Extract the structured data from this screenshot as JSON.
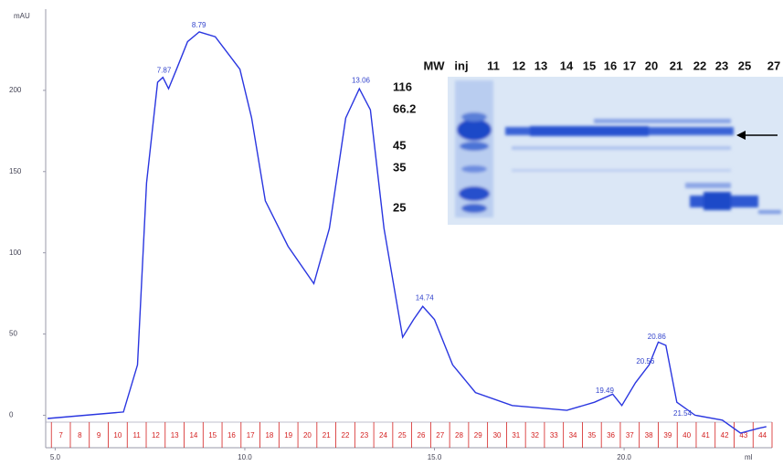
{
  "chart_data": {
    "type": "line",
    "y_label": "mAU",
    "x_label": "ml",
    "color": "#2a36e0",
    "x": [
      4.8,
      6.8,
      7.17,
      7.41,
      7.7,
      7.84,
      7.99,
      8.2,
      8.49,
      8.8,
      9.22,
      9.58,
      9.87,
      10.18,
      10.54,
      11.14,
      11.82,
      12.23,
      12.66,
      13.02,
      13.31,
      13.67,
      14.16,
      14.45,
      14.69,
      15.0,
      15.48,
      16.08,
      17.05,
      18.49,
      19.22,
      19.7,
      19.94,
      20.3,
      20.66,
      20.9,
      21.1,
      21.39,
      21.87,
      22.59,
      23.07,
      23.55,
      23.75
    ],
    "values": [
      -2,
      2,
      31,
      143,
      205,
      208,
      201,
      213,
      230,
      236,
      233,
      222,
      213,
      183,
      132,
      104,
      81,
      115,
      183,
      201,
      188,
      115,
      48,
      59,
      67,
      59,
      31,
      14,
      6,
      3,
      8,
      13,
      6,
      20,
      31,
      45,
      43,
      8,
      0,
      -3,
      -11,
      -8,
      -7
    ],
    "xlim": [
      4.75,
      23.9
    ],
    "ylim": [
      -20,
      250
    ],
    "xticks": [
      {
        "value": 5,
        "label": "5.0"
      },
      {
        "value": 10,
        "label": "10.0"
      },
      {
        "value": 15,
        "label": "15.0"
      },
      {
        "value": 20,
        "label": "20.0"
      }
    ],
    "yticks": [
      0,
      50,
      100,
      150,
      200
    ],
    "annotations": [
      {
        "x": 7.87,
        "y": 212,
        "label": "7.87"
      },
      {
        "x": 8.79,
        "y": 240,
        "label": "8.79"
      },
      {
        "x": 13.06,
        "y": 206,
        "label": "13.06"
      },
      {
        "x": 14.74,
        "y": 72,
        "label": "14.74"
      },
      {
        "x": 19.49,
        "y": 15,
        "label": "19.49"
      },
      {
        "x": 20.56,
        "y": 33,
        "label": "20.56"
      },
      {
        "x": 20.86,
        "y": 48,
        "label": "20.86"
      },
      {
        "x": 21.54,
        "y": 1,
        "label": "21.54"
      }
    ],
    "fraction_color": "#d42020",
    "fractions": [
      "7",
      "8",
      "9",
      "10",
      "11",
      "12",
      "13",
      "14",
      "15",
      "16",
      "17",
      "18",
      "19",
      "20",
      "21",
      "22",
      "23",
      "24",
      "25",
      "26",
      "27",
      "28",
      "29",
      "30",
      "31",
      "32",
      "33",
      "34",
      "35",
      "36",
      "37",
      "38",
      "39",
      "40",
      "41",
      "42",
      "43",
      "44"
    ],
    "fraction_edges": [
      4.9,
      5.4,
      5.9,
      6.4,
      6.9,
      7.4,
      7.9,
      8.4,
      8.9,
      9.4,
      9.9,
      10.4,
      10.9,
      11.4,
      11.9,
      12.4,
      12.9,
      13.4,
      13.9,
      14.4,
      14.9,
      15.4,
      15.9,
      16.4,
      16.9,
      17.4,
      17.9,
      18.4,
      18.9,
      19.4,
      19.9,
      20.4,
      20.9,
      21.4,
      21.9,
      22.4,
      22.9,
      23.4,
      23.9
    ]
  },
  "gel": {
    "lanes": [
      "MW",
      "inj",
      "11",
      "12",
      "13",
      "14",
      "15",
      "16",
      "17",
      "20",
      "21",
      "22",
      "23",
      "25",
      "27"
    ],
    "markers": [
      "116",
      "66.2",
      "45",
      "35",
      "25"
    ]
  }
}
